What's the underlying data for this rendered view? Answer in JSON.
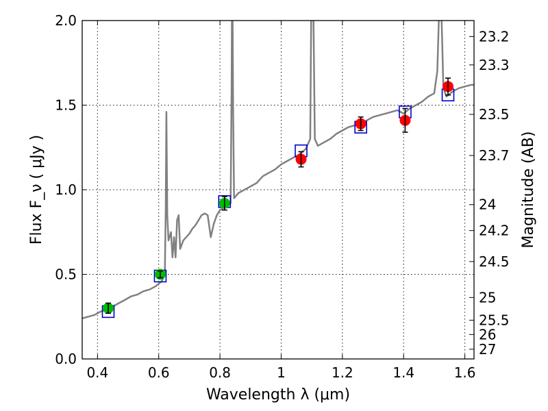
{
  "chart_data": {
    "type": "scatter",
    "xlabel": "Wavelength λ (μm)",
    "ylabel": "Flux F_ν ( μJy )",
    "y2label": "Magnitude (AB)",
    "xlim": [
      0.35,
      1.63
    ],
    "ylim": [
      0.0,
      2.0
    ],
    "grid": true,
    "x_ticks": [
      "0.4",
      "0.6",
      "0.8",
      "1",
      "1.2",
      "1.4",
      "1.6"
    ],
    "x_tick_values": [
      0.4,
      0.6,
      0.8,
      1.0,
      1.2,
      1.4,
      1.6
    ],
    "y_ticks": [
      "0.0",
      "0.5",
      "1.0",
      "1.5",
      "2.0"
    ],
    "y_tick_values": [
      0.0,
      0.5,
      1.0,
      1.5,
      2.0
    ],
    "y2_ticks": [
      {
        "label": "23.2",
        "flux": 1.9055
      },
      {
        "label": "23.3",
        "flux": 1.7378
      },
      {
        "label": "23.5",
        "flux": 1.4454
      },
      {
        "label": "23.7",
        "flux": 1.2023
      },
      {
        "label": "24",
        "flux": 0.912
      },
      {
        "label": "24.2",
        "flux": 0.7586
      },
      {
        "label": "24.5",
        "flux": 0.5754
      },
      {
        "label": "25",
        "flux": 0.3631
      },
      {
        "label": "25.5",
        "flux": 0.2291
      },
      {
        "label": "26",
        "flux": 0.1445
      },
      {
        "label": "27",
        "flux": 0.0575
      }
    ],
    "series": [
      {
        "kind": "line",
        "color": "#808080",
        "x": [
          0.35,
          0.37,
          0.39,
          0.41,
          0.43,
          0.45,
          0.47,
          0.49,
          0.51,
          0.53,
          0.55,
          0.57,
          0.59,
          0.61,
          0.615,
          0.62,
          0.623,
          0.625,
          0.628,
          0.632,
          0.64,
          0.645,
          0.65,
          0.655,
          0.66,
          0.665,
          0.67,
          0.68,
          0.69,
          0.7,
          0.71,
          0.72,
          0.73,
          0.74,
          0.75,
          0.76,
          0.77,
          0.78,
          0.79,
          0.8,
          0.82,
          0.835,
          0.838,
          0.84,
          0.843,
          0.846,
          0.86,
          0.88,
          0.9,
          0.92,
          0.94,
          0.96,
          0.98,
          1.0,
          1.02,
          1.04,
          1.06,
          1.08,
          1.095,
          1.1,
          1.105,
          1.11,
          1.12,
          1.14,
          1.16,
          1.18,
          1.2,
          1.22,
          1.24,
          1.26,
          1.28,
          1.3,
          1.32,
          1.34,
          1.36,
          1.38,
          1.4,
          1.42,
          1.44,
          1.46,
          1.48,
          1.5,
          1.51,
          1.52,
          1.53,
          1.54,
          1.56,
          1.58,
          1.6,
          1.62,
          1.63
        ],
        "y": [
          0.24,
          0.25,
          0.26,
          0.28,
          0.29,
          0.31,
          0.33,
          0.35,
          0.37,
          0.38,
          0.4,
          0.41,
          0.43,
          0.46,
          0.48,
          0.52,
          0.9,
          1.46,
          0.85,
          0.7,
          0.75,
          0.6,
          0.72,
          0.6,
          0.82,
          0.85,
          0.65,
          0.7,
          0.72,
          0.74,
          0.77,
          0.79,
          0.82,
          0.85,
          0.86,
          0.85,
          0.72,
          0.8,
          0.85,
          0.88,
          0.9,
          0.92,
          1.6,
          2.4,
          1.5,
          0.95,
          0.98,
          1.0,
          1.02,
          1.04,
          1.08,
          1.1,
          1.12,
          1.15,
          1.17,
          1.19,
          1.21,
          1.24,
          1.3,
          2.5,
          2.1,
          1.3,
          1.26,
          1.28,
          1.3,
          1.33,
          1.35,
          1.37,
          1.38,
          1.39,
          1.41,
          1.43,
          1.44,
          1.45,
          1.46,
          1.47,
          1.45,
          1.48,
          1.5,
          1.52,
          1.55,
          1.57,
          1.7,
          2.3,
          1.6,
          1.55,
          1.58,
          1.6,
          1.61,
          1.62,
          1.62
        ]
      },
      {
        "kind": "open-squares",
        "color": "#0000cc",
        "x": [
          0.435,
          0.605,
          0.815,
          1.065,
          1.26,
          1.405,
          1.545
        ],
        "y": [
          0.28,
          0.49,
          0.93,
          1.23,
          1.37,
          1.46,
          1.56
        ]
      },
      {
        "kind": "points-with-errors",
        "color": "#00bb00",
        "x": [
          0.435,
          0.605,
          0.815
        ],
        "y": [
          0.3,
          0.5,
          0.92
        ],
        "err": [
          0.03,
          0.02,
          0.04
        ]
      },
      {
        "kind": "points-with-errors",
        "color": "#ff0000",
        "x": [
          1.065,
          1.26,
          1.405,
          1.545
        ],
        "y": [
          1.18,
          1.39,
          1.41,
          1.61
        ],
        "err": [
          0.045,
          0.04,
          0.07,
          0.05
        ]
      }
    ]
  }
}
